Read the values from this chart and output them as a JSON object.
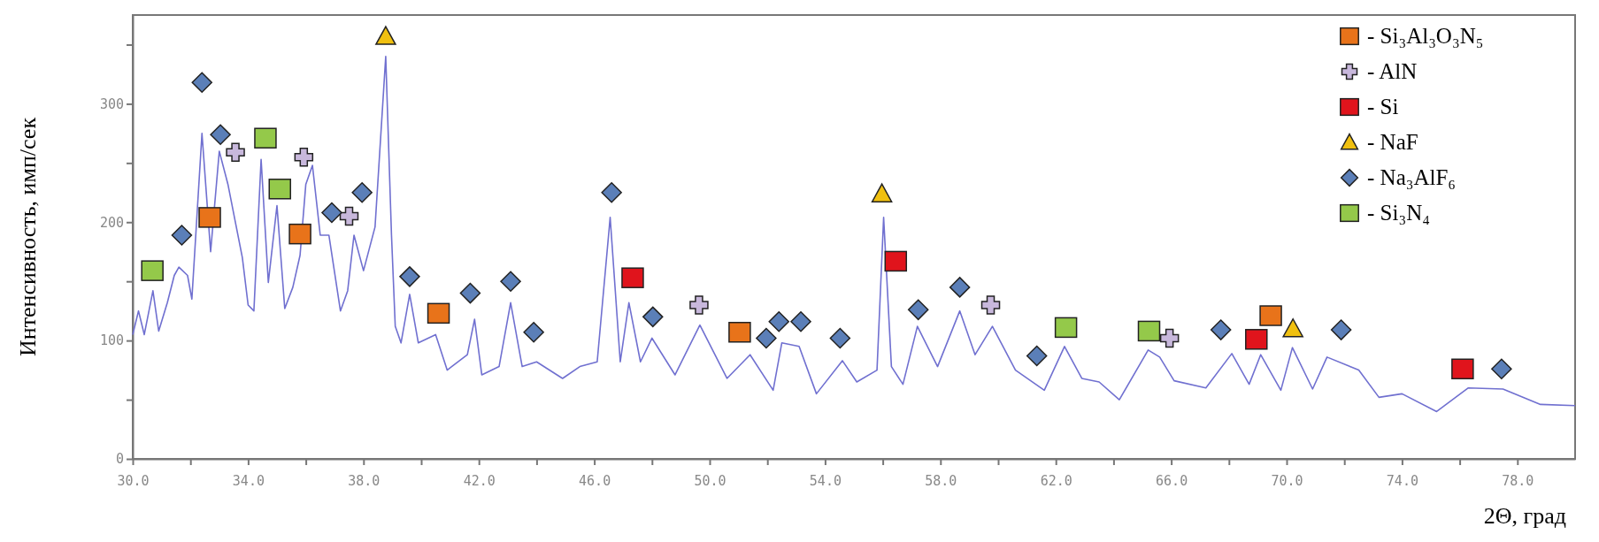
{
  "chart_data": {
    "type": "line",
    "xlabel": "2Θ, град",
    "ylabel": "Интенсивность, имп/сек",
    "xlim": [
      30,
      80
    ],
    "ylim": [
      0,
      375
    ],
    "xticks": [
      {
        "value": 30,
        "label": "30.0"
      },
      {
        "value": 32,
        "label": null
      },
      {
        "value": 34,
        "label": "34.0"
      },
      {
        "value": 36,
        "label": null
      },
      {
        "value": 38,
        "label": "38.0"
      },
      {
        "value": 40,
        "label": null
      },
      {
        "value": 42,
        "label": "42.0"
      },
      {
        "value": 44,
        "label": null
      },
      {
        "value": 46,
        "label": "46.0"
      },
      {
        "value": 48,
        "label": null
      },
      {
        "value": 50,
        "label": "50.0"
      },
      {
        "value": 52,
        "label": null
      },
      {
        "value": 54,
        "label": "54.0"
      },
      {
        "value": 56,
        "label": null
      },
      {
        "value": 58,
        "label": "58.0"
      },
      {
        "value": 60,
        "label": null
      },
      {
        "value": 62,
        "label": "62.0"
      },
      {
        "value": 64,
        "label": null
      },
      {
        "value": 66,
        "label": "66.0"
      },
      {
        "value": 68,
        "label": null
      },
      {
        "value": 70,
        "label": "70.0"
      },
      {
        "value": 72,
        "label": null
      },
      {
        "value": 74,
        "label": "74.0"
      },
      {
        "value": 76,
        "label": null
      },
      {
        "value": 78,
        "label": "78.0"
      }
    ],
    "yticks": [
      0,
      {
        "value": 50,
        "label": null
      },
      100,
      {
        "value": 150,
        "label": null
      },
      200,
      {
        "value": 250,
        "label": null
      },
      300,
      {
        "value": 350,
        "label": null
      }
    ],
    "grid": false,
    "legend": "top right",
    "series": [
      {
        "color": "#7070d0",
        "marker": "none",
        "x": [
          30,
          30.2,
          30.4,
          30.7,
          30.9,
          31.2,
          31.44,
          31.6,
          31.9,
          32.05,
          32.4,
          32.7,
          33.0,
          33.3,
          33.8,
          34.0,
          34.2,
          34.45,
          34.7,
          35.0,
          35.27,
          35.55,
          35.8,
          36.0,
          36.23,
          36.5,
          36.8,
          37.2,
          37.45,
          37.67,
          38.0,
          38.4,
          38.77,
          38.97,
          39.1,
          39.3,
          39.6,
          39.9,
          40.5,
          40.9,
          41.6,
          41.85,
          42.1,
          42.7,
          43.1,
          43.5,
          44.0,
          44.9,
          45.5,
          46.1,
          46.55,
          46.9,
          47.2,
          47.6,
          48.0,
          48.8,
          49.66,
          50.6,
          51.4,
          52.2,
          52.5,
          53.1,
          53.7,
          54.6,
          55.1,
          55.8,
          56.03,
          56.3,
          56.7,
          57.2,
          57.9,
          58.67,
          59.2,
          59.8,
          60.6,
          61.6,
          62.3,
          62.9,
          63.5,
          64.2,
          65.2,
          65.6,
          66.1,
          67.2,
          68.1,
          68.7,
          69.1,
          69.8,
          70.2,
          70.9,
          71.4,
          72.5,
          73.2,
          74.0,
          75.2,
          76.3,
          77.5,
          78.8,
          80
        ],
        "values": [
          105,
          125,
          105,
          142,
          108,
          132,
          155,
          162,
          155,
          135,
          275,
          175,
          260,
          232,
          170,
          130,
          125,
          253,
          149,
          214,
          127,
          145,
          172,
          232,
          248,
          189,
          189,
          125,
          142,
          189,
          159,
          196,
          340,
          189,
          112,
          98,
          139,
          98,
          105,
          75,
          88,
          118,
          71,
          78,
          132,
          78,
          82,
          68,
          78,
          82,
          204,
          82,
          132,
          82,
          102,
          71,
          113,
          68,
          88,
          58,
          98,
          95,
          55,
          83,
          65,
          75,
          204,
          78,
          63,
          112,
          78,
          125,
          88,
          112,
          75,
          58,
          95,
          68,
          65,
          50,
          92,
          86,
          66,
          60,
          89,
          63,
          88,
          58,
          94,
          59,
          86,
          75,
          52,
          55,
          40,
          60,
          59,
          46,
          45
        ]
      },
      {
        "type": "scatter",
        "name": "- Si₃Al₃O₃N₅",
        "color": "#e8731a",
        "marker": "square",
        "x": [
          32.67,
          35.8,
          40.6,
          51.04,
          69.45
        ],
        "values": [
          204,
          190,
          123,
          107,
          121
        ]
      },
      {
        "type": "scatter",
        "name": "- AlN",
        "color": "#c8b8dc",
        "marker": "cross",
        "x": [
          33.56,
          35.93,
          37.5,
          49.63,
          59.74,
          65.94
        ],
        "values": [
          259,
          255,
          205,
          130,
          130,
          102
        ]
      },
      {
        "type": "scatter",
        "name": "- Si",
        "color": "#e0141c",
        "marker": "square",
        "x": [
          47.33,
          56.45,
          68.95,
          76.1
        ],
        "values": [
          153,
          167,
          101,
          76
        ]
      },
      {
        "type": "scatter",
        "name": "- NaF",
        "color": "#f0c010",
        "marker": "triangle",
        "x": [
          38.77,
          55.97,
          70.22
        ],
        "values": [
          357,
          224,
          110
        ]
      },
      {
        "type": "scatter",
        "name": "- Na₃AlF₆",
        "color": "#5b7fb8",
        "marker": "diamond",
        "x": [
          31.7,
          32.4,
          33.04,
          36.9,
          37.95,
          39.6,
          41.7,
          43.1,
          43.9,
          46.6,
          48.03,
          51.96,
          52.4,
          53.16,
          54.52,
          57.23,
          58.67,
          61.34,
          67.72,
          71.89,
          77.45
        ],
        "values": [
          189,
          318,
          274,
          208,
          225,
          154,
          140,
          150,
          107,
          225,
          120,
          102,
          116,
          116,
          102,
          126,
          145,
          87,
          109,
          109,
          76
        ]
      },
      {
        "type": "scatter",
        "name": "- Si₃N₄",
        "color": "#94c94a",
        "marker": "square",
        "x": [
          30.68,
          34.6,
          35.1,
          62.35,
          65.23
        ],
        "values": [
          159,
          271,
          228,
          111,
          108
        ]
      }
    ]
  }
}
